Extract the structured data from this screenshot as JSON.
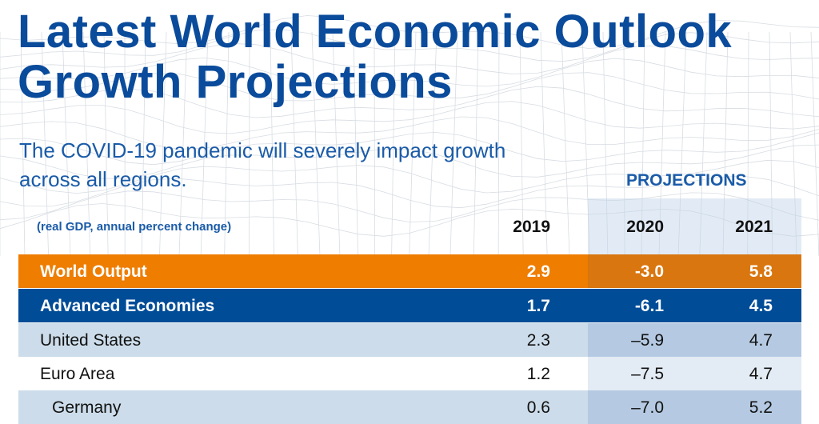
{
  "title_lines": [
    "Latest World Economic Outlook",
    "Growth Projections"
  ],
  "subtitle": "The COVID-19 pandemic will severely impact growth across all regions.",
  "projections_label": "PROJECTIONS",
  "chart_data": {
    "type": "table",
    "unit_note": "(real GDP, annual percent change)",
    "columns": [
      "2019",
      "2020",
      "2021"
    ],
    "rows": [
      {
        "label": "World Output",
        "values": [
          "2.9",
          "-3.0",
          "5.8"
        ]
      },
      {
        "label": "Advanced Economies",
        "values": [
          "1.7",
          "-6.1",
          "4.5"
        ]
      },
      {
        "label": "United States",
        "values": [
          "2.3",
          "–5.9",
          "4.7"
        ]
      },
      {
        "label": "Euro Area",
        "values": [
          "1.2",
          "–7.5",
          "4.7"
        ]
      },
      {
        "label": "Germany",
        "values": [
          "0.6",
          "–7.0",
          "5.2"
        ]
      }
    ]
  },
  "colors": {
    "title": "#0A4B9B",
    "orange": "#EE7D00",
    "blue": "#004C97",
    "light_blue": "#CCDCEA"
  }
}
